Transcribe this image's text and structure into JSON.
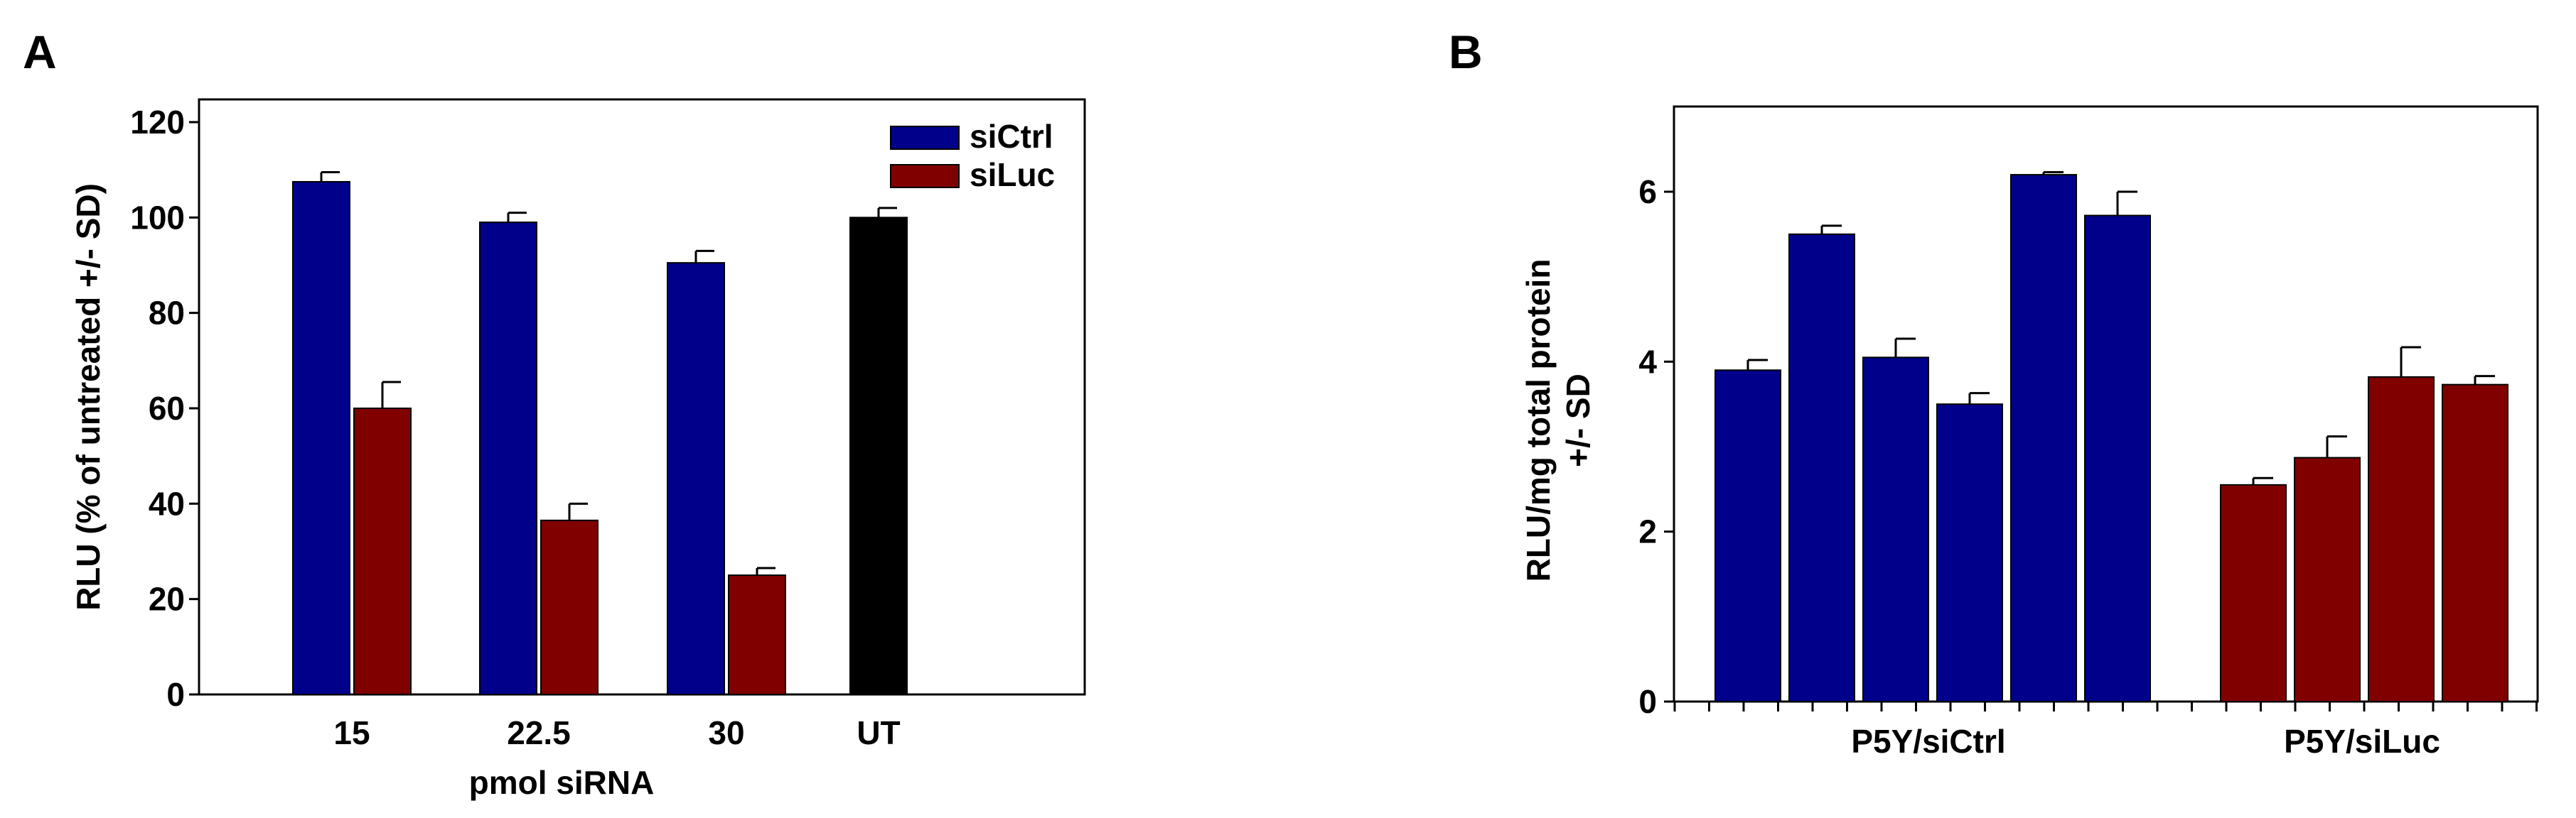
{
  "colors": {
    "siCtrl": "#00008b",
    "siLuc": "#800000",
    "untreated": "#000000"
  },
  "chart_data": [
    {
      "panel_label": "A",
      "type": "bar",
      "xlabel": "pmol siRNA",
      "ylabel": "RLU (% of untreated +/- SD)",
      "ylim": [
        0,
        120
      ],
      "yticks": [
        0,
        20,
        40,
        60,
        80,
        100,
        120
      ],
      "grid": false,
      "legend_position": "top-right",
      "categories": [
        "15",
        "22.5",
        "30",
        "UT"
      ],
      "series": [
        {
          "name": "siCtrl",
          "color_key": "siCtrl",
          "values": [
            107.5,
            99,
            90.5,
            null
          ],
          "errors": [
            2,
            2,
            2.5,
            null
          ]
        },
        {
          "name": "siLuc",
          "color_key": "siLuc",
          "values": [
            60,
            36.5,
            25,
            null
          ],
          "errors": [
            5.5,
            3.5,
            1.5,
            null
          ]
        },
        {
          "name": "",
          "color_key": "untreated",
          "values": [
            null,
            null,
            null,
            100
          ],
          "errors": [
            null,
            null,
            null,
            2
          ]
        }
      ]
    },
    {
      "panel_label": "B",
      "type": "bar",
      "xlabel": "",
      "ylabel_lines": [
        "RLU/mg total protein",
        "+/- SD"
      ],
      "ylim": [
        0,
        7
      ],
      "yticks": [
        0,
        2,
        4,
        6
      ],
      "grid": false,
      "groups": [
        {
          "label": "P5Y/siCtrl",
          "color_key": "siCtrl",
          "values": [
            3.9,
            5.5,
            4.05,
            3.5,
            6.2,
            5.72
          ],
          "errors": [
            0.12,
            0.1,
            0.22,
            0.13,
            0.03,
            0.28
          ]
        },
        {
          "label": "P5Y/siLuc",
          "color_key": "siLuc",
          "values": [
            2.55,
            2.87,
            3.82,
            3.73
          ],
          "errors": [
            0.08,
            0.25,
            0.35,
            0.1
          ]
        }
      ]
    }
  ]
}
